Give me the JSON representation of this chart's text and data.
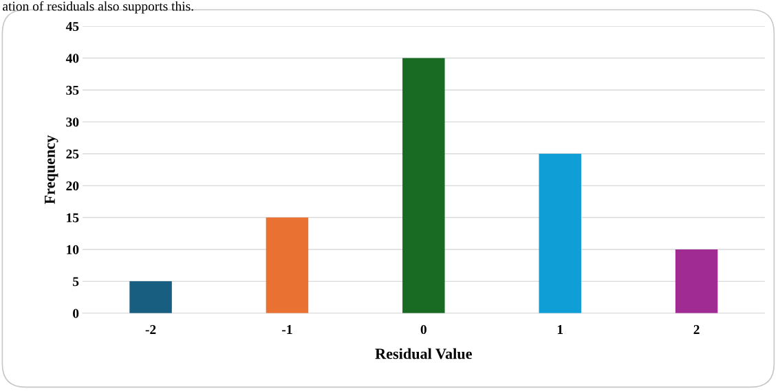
{
  "chart_data": {
    "type": "bar",
    "xlabel": "Residual Value",
    "ylabel": "Frequency",
    "annotations": [
      "ation of residuals also supports this."
    ],
    "categories": [
      "-2",
      "-1",
      "0",
      "1",
      "2"
    ],
    "values": [
      5,
      15,
      40,
      25,
      10
    ],
    "colors": [
      "#175e80",
      "#e97132",
      "#196b24",
      "#0f9ed5",
      "#a02b93"
    ],
    "ylim": [
      0,
      45
    ],
    "yticks": [
      0,
      5,
      10,
      15,
      20,
      25,
      30,
      35,
      40,
      45
    ],
    "grid": "y"
  }
}
